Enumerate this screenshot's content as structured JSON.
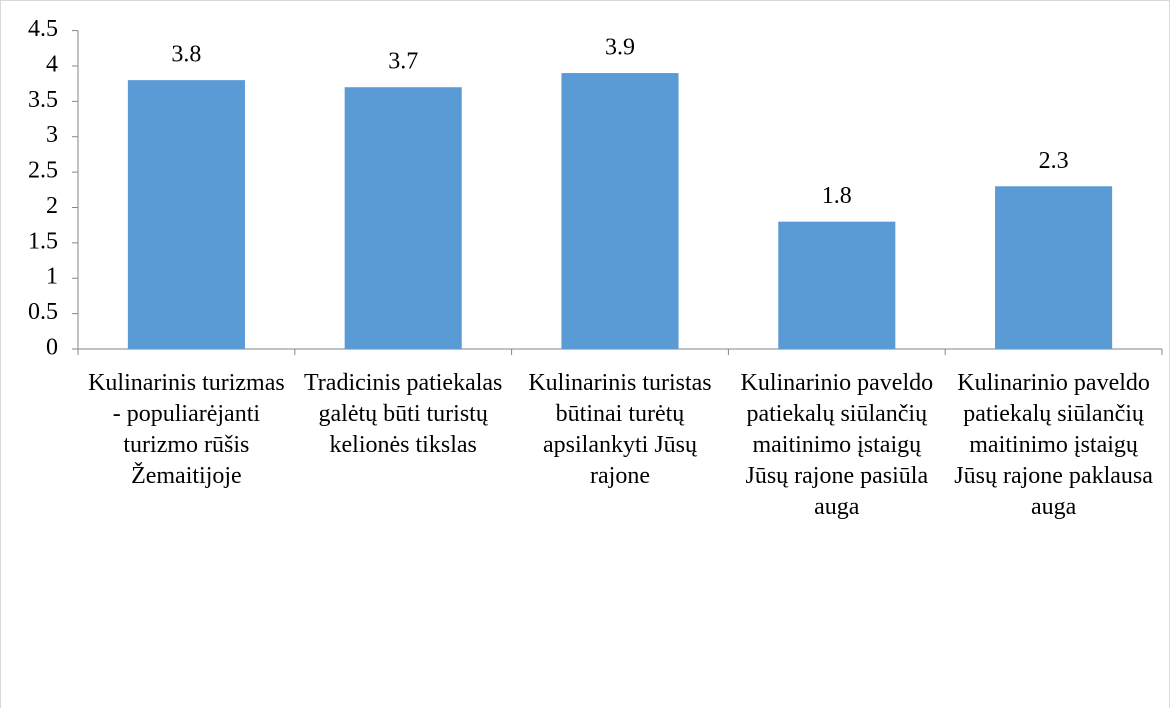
{
  "chart_data": {
    "type": "bar",
    "categories": [
      "Kulinarinis turizmas - populiarėjanti turizmo rūšis Žemaitijoje",
      "Tradicinis patiekalas galėtų būti turistų kelionės tikslas",
      "Kulinarinis turistas būtinai turėtų apsilankyti Jūsų rajone",
      "Kulinarinio paveldo patiekalų siūlančių maitinimo įstaigų Jūsų rajone pasiūla auga",
      "Kulinarinio paveldo patiekalų siūlančių maitinimo įstaigų Jūsų rajone paklausa auga"
    ],
    "values": [
      3.8,
      3.7,
      3.9,
      1.8,
      2.3
    ],
    "color": "#5b9bd5",
    "ylim": [
      0,
      4.5
    ],
    "yticks": [
      0,
      0.5,
      1,
      1.5,
      2,
      2.5,
      3,
      3.5,
      4,
      4.5
    ],
    "grid": false
  }
}
